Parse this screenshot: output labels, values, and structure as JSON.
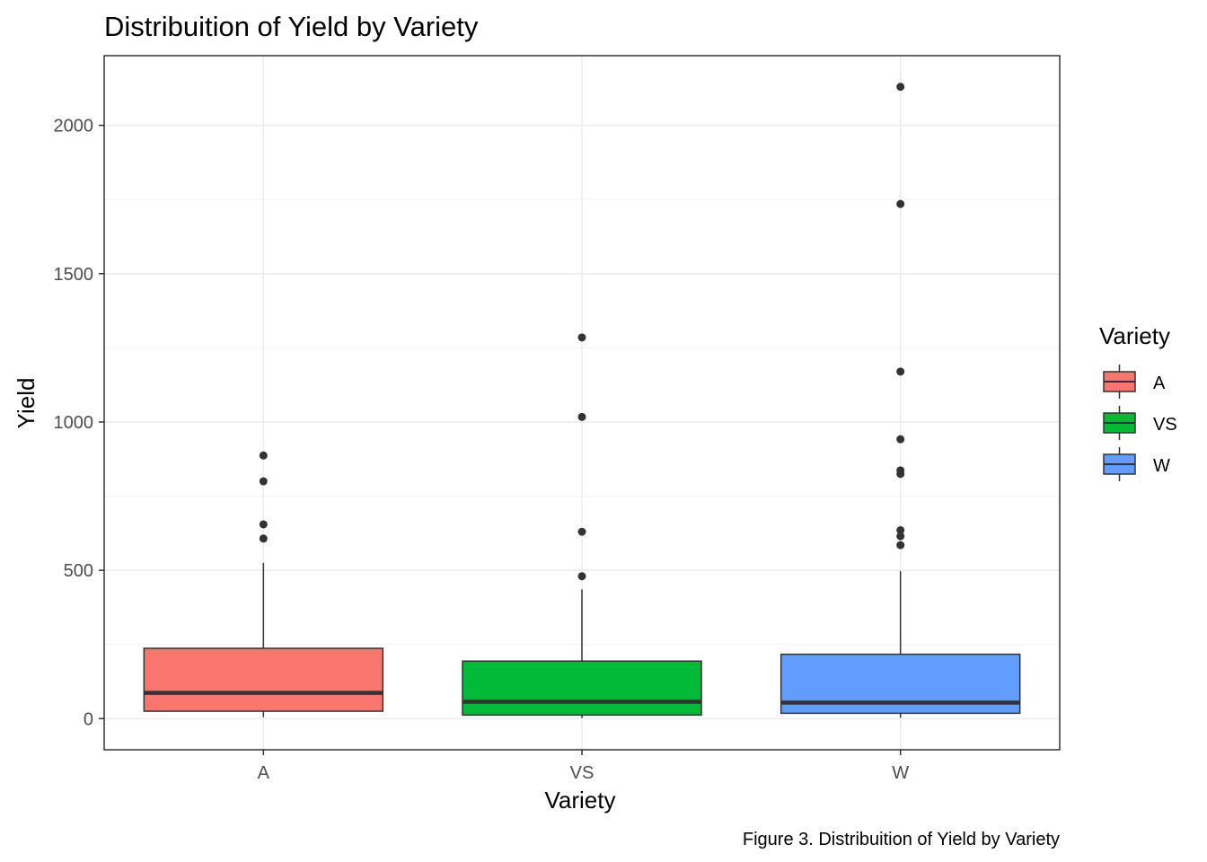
{
  "chart_data": {
    "type": "boxplot",
    "title": "Distribuition of Yield by Variety",
    "xlabel": "Variety",
    "ylabel": "Yield",
    "caption": "Figure 3. Distribuition of Yield by Variety",
    "categories": [
      "A",
      "VS",
      "W"
    ],
    "ylim": [
      -105,
      2235
    ],
    "yticks": [
      0,
      500,
      1000,
      1500,
      2000
    ],
    "ytick_labels": [
      "0",
      "500",
      "1000",
      "1500",
      "2000"
    ],
    "grid": true,
    "legend": {
      "title": "Variety",
      "position": "right",
      "entries": [
        {
          "label": "A",
          "color": "#F8766D"
        },
        {
          "label": "VS",
          "color": "#00BA38"
        },
        {
          "label": "W",
          "color": "#619CFF"
        }
      ]
    },
    "boxes": [
      {
        "name": "A",
        "color": "#F8766D",
        "whisker_low": 5,
        "q1": 25,
        "median": 87,
        "q3": 237,
        "whisker_high": 525,
        "outliers": [
          887,
          800,
          655,
          607
        ]
      },
      {
        "name": "VS",
        "color": "#00BA38",
        "whisker_low": 2,
        "q1": 12,
        "median": 57,
        "q3": 194,
        "whisker_high": 435,
        "outliers": [
          1285,
          1017,
          630,
          480
        ]
      },
      {
        "name": "W",
        "color": "#619CFF",
        "whisker_low": 3,
        "q1": 18,
        "median": 54,
        "q3": 217,
        "whisker_high": 497,
        "outliers": [
          2130,
          1735,
          1170,
          942,
          837,
          825,
          635,
          615,
          585
        ]
      }
    ]
  }
}
